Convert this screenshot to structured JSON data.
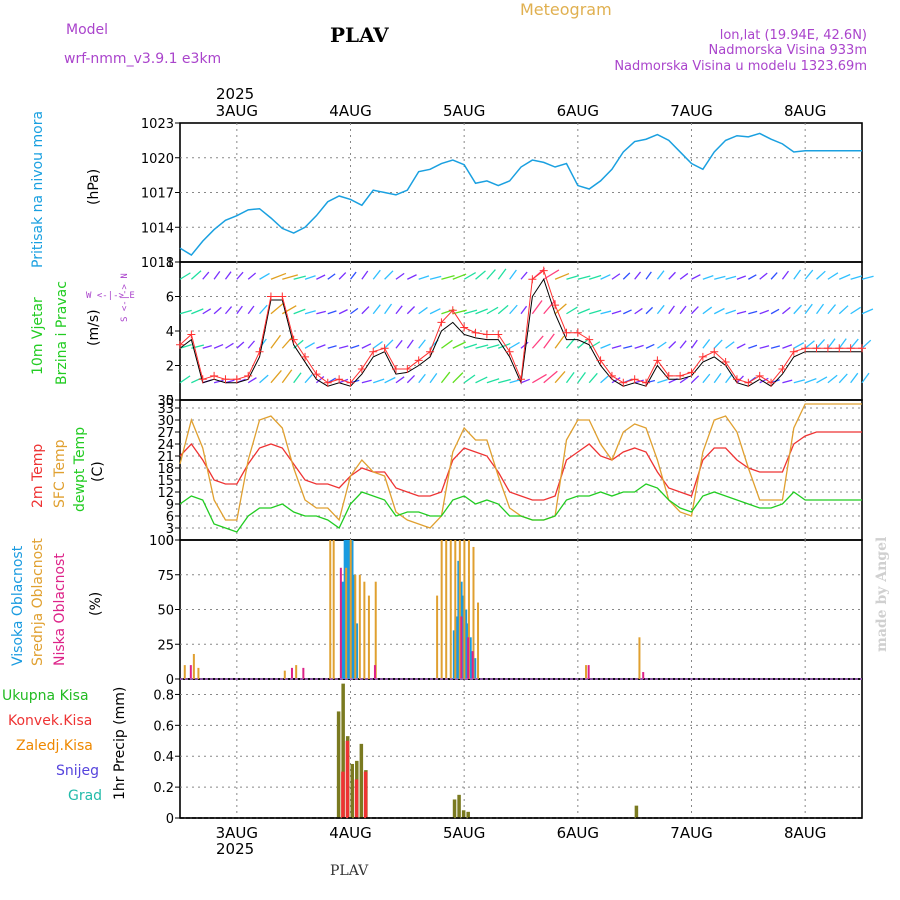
{
  "header": {
    "model_label": "Model",
    "model_name": "wrf-nmm_v3.9.1  e3km",
    "station": "PLAV",
    "title": "Meteogram",
    "lonlat": "lon,lat (19.94E, 42.6N)",
    "elevation": "Nadmorska Visina 933m",
    "model_elevation": "Nadmorska Visina u modelu 1323.69m",
    "footer_station": "PLAV",
    "watermark": "made by Angel"
  },
  "colors": {
    "pressure": "#1aa0e0",
    "wind_speed": "#000000",
    "wind_gust": "#ff3030",
    "temp2m": "#ee3333",
    "sfc_temp": "#e0a030",
    "dewpt": "#22cc22",
    "cloud_high": "#1a9be0",
    "cloud_mid": "#e0a030",
    "cloud_low": "#dd2288",
    "precip_total": "#22bb22",
    "precip_conv": "#ee3333",
    "precip_frz": "#ee8800",
    "precip_snow": "#5544dd",
    "precip_hail": "#22bbaa",
    "title": "#e0b050",
    "meta": "#aa44cc"
  },
  "time_axis": {
    "year": "2025",
    "days": [
      "3AUG",
      "4AUG",
      "5AUG",
      "6AUG",
      "7AUG",
      "8AUG"
    ],
    "start_day_offset": 0.5,
    "span_days": 6.0
  },
  "panels": {
    "pressure": {
      "ylabel_main": "Pritisak na nivou mora",
      "ylabel_unit": "(hPa)",
      "ticks": [
        "1011",
        "1014",
        "1017",
        "1020",
        "1023"
      ]
    },
    "wind": {
      "ylabel_line1": "10m Vjetar",
      "ylabel_line2": "Brzina i Pravac",
      "ylabel_unit": "(m/s)",
      "compass": "W <-|-> E",
      "compass_v": "S <-|-> N",
      "ticks": [
        "0",
        "2",
        "4",
        "6",
        "8"
      ]
    },
    "temp": {
      "ylabel_2m": "2m Temp",
      "ylabel_sfc": "SFC Temp",
      "ylabel_dew": "dewpt Temp",
      "ylabel_unit": "(C)",
      "ticks": [
        "0",
        "3",
        "6",
        "9",
        "12",
        "15",
        "18",
        "21",
        "24",
        "27",
        "30",
        "33",
        "35"
      ]
    },
    "cloud": {
      "ylabel_high": "Visoka Oblacnost",
      "ylabel_mid": "Srednja Oblacnost",
      "ylabel_low": "Niska Oblacnost",
      "ylabel_unit": "(%)",
      "ticks": [
        "0",
        "25",
        "50",
        "75",
        "100"
      ]
    },
    "precip": {
      "legend_total": "Ukupna Kisa",
      "legend_conv": "Konvek.Kisa",
      "legend_frz": "Zaledj.Kisa",
      "legend_snow": "Snijeg",
      "legend_hail": "Grad",
      "ylabel": "1hr Precip (mm)",
      "ticks": [
        "0",
        "0.2",
        "0.4",
        "0.6",
        "0.8"
      ]
    }
  },
  "chart_data": [
    {
      "type": "line",
      "title": "Pritisak na nivou mora",
      "ylabel": "(hPa)",
      "ylim": [
        1011,
        1023
      ],
      "x_days": [
        0.5,
        0.6,
        0.7,
        0.8,
        0.9,
        1.0,
        1.1,
        1.2,
        1.3,
        1.4,
        1.5,
        1.6,
        1.7,
        1.8,
        1.9,
        2.0,
        2.1,
        2.2,
        2.3,
        2.4,
        2.5,
        2.6,
        2.7,
        2.8,
        2.9,
        3.0,
        3.1,
        3.2,
        3.3,
        3.4,
        3.5,
        3.6,
        3.7,
        3.8,
        3.9,
        4.0,
        4.1,
        4.2,
        4.3,
        4.4,
        4.5,
        4.6,
        4.7,
        4.8,
        4.9,
        5.0,
        5.1,
        5.2,
        5.3,
        5.4,
        5.5,
        5.6,
        5.7,
        5.8,
        5.9,
        6.0,
        6.1,
        6.2,
        6.3,
        6.4,
        6.5
      ],
      "values": [
        1012.2,
        1011.6,
        1012.8,
        1013.8,
        1014.6,
        1015.0,
        1015.5,
        1015.6,
        1014.8,
        1013.9,
        1013.5,
        1014.0,
        1015.0,
        1016.2,
        1016.7,
        1016.4,
        1015.9,
        1017.2,
        1017.0,
        1016.8,
        1017.2,
        1018.8,
        1019.0,
        1019.5,
        1019.8,
        1019.4,
        1017.8,
        1018.0,
        1017.6,
        1018.0,
        1019.2,
        1019.8,
        1019.6,
        1019.2,
        1019.5,
        1017.6,
        1017.3,
        1018.0,
        1019.0,
        1020.5,
        1021.4,
        1021.6,
        1022.0,
        1021.5,
        1020.5,
        1019.5,
        1019.0,
        1020.5,
        1021.5,
        1021.9,
        1021.8,
        1022.1,
        1021.6,
        1021.2,
        1020.5,
        1020.6,
        1020.6,
        1020.6,
        1020.6,
        1020.6,
        1020.6
      ]
    },
    {
      "type": "line",
      "title": "10m Vjetar Brzina i Pravac",
      "ylabel": "(m/s)",
      "ylim": [
        0,
        8
      ],
      "x_days": [
        0.5,
        0.6,
        0.7,
        0.8,
        0.9,
        1.0,
        1.1,
        1.2,
        1.3,
        1.4,
        1.5,
        1.6,
        1.7,
        1.8,
        1.9,
        2.0,
        2.1,
        2.2,
        2.3,
        2.4,
        2.5,
        2.6,
        2.7,
        2.8,
        2.9,
        3.0,
        3.1,
        3.2,
        3.3,
        3.4,
        3.5,
        3.6,
        3.7,
        3.8,
        3.9,
        4.0,
        4.1,
        4.2,
        4.3,
        4.4,
        4.5,
        4.6,
        4.7,
        4.8,
        4.9,
        5.0,
        5.1,
        5.2,
        5.3,
        5.4,
        5.5,
        5.6,
        5.7,
        5.8,
        5.9,
        6.0,
        6.1,
        6.2,
        6.3,
        6.4,
        6.5
      ],
      "series": [
        {
          "name": "wind_speed",
          "values": [
            3.0,
            3.5,
            1.0,
            1.2,
            1.0,
            1.0,
            1.2,
            2.5,
            5.8,
            5.8,
            3.2,
            2.2,
            1.2,
            0.8,
            1.0,
            0.8,
            1.5,
            2.5,
            2.8,
            1.5,
            1.6,
            2.0,
            2.5,
            4.0,
            4.5,
            3.8,
            3.6,
            3.5,
            3.5,
            2.5,
            1.0,
            6.0,
            7.0,
            5.0,
            3.5,
            3.5,
            3.2,
            2.0,
            1.2,
            0.8,
            1.0,
            0.8,
            2.0,
            1.2,
            1.2,
            1.4,
            2.2,
            2.5,
            2.0,
            1.0,
            0.8,
            1.2,
            0.8,
            1.5,
            2.5,
            2.8,
            2.8,
            2.8,
            2.8,
            2.8,
            2.8
          ]
        },
        {
          "name": "wind_gust",
          "values": [
            3.2,
            3.8,
            1.2,
            1.4,
            1.2,
            1.2,
            1.4,
            2.8,
            6.0,
            6.0,
            3.5,
            2.5,
            1.5,
            1.0,
            1.2,
            1.0,
            1.8,
            2.8,
            3.0,
            1.8,
            1.8,
            2.3,
            2.8,
            4.5,
            5.2,
            4.2,
            3.9,
            3.8,
            3.8,
            2.8,
            1.2,
            7.0,
            7.5,
            5.5,
            3.9,
            3.9,
            3.5,
            2.3,
            1.4,
            1.0,
            1.2,
            1.0,
            2.3,
            1.4,
            1.4,
            1.6,
            2.5,
            2.8,
            2.2,
            1.2,
            1.0,
            1.4,
            1.0,
            1.8,
            2.8,
            3.0,
            3.0,
            3.0,
            3.0,
            3.0,
            3.0
          ]
        }
      ]
    },
    {
      "type": "line",
      "title": "Temperature",
      "ylabel": "(C)",
      "ylim": [
        0,
        35
      ],
      "x_days": [
        0.5,
        0.6,
        0.7,
        0.8,
        0.9,
        1.0,
        1.1,
        1.2,
        1.3,
        1.4,
        1.5,
        1.6,
        1.7,
        1.8,
        1.9,
        2.0,
        2.1,
        2.2,
        2.3,
        2.4,
        2.5,
        2.6,
        2.7,
        2.8,
        2.9,
        3.0,
        3.1,
        3.2,
        3.3,
        3.4,
        3.5,
        3.6,
        3.7,
        3.8,
        3.9,
        4.0,
        4.1,
        4.2,
        4.3,
        4.4,
        4.5,
        4.6,
        4.7,
        4.8,
        4.9,
        5.0,
        5.1,
        5.2,
        5.3,
        5.4,
        5.5,
        5.6,
        5.7,
        5.8,
        5.9,
        6.0,
        6.1,
        6.2,
        6.3,
        6.4,
        6.5
      ],
      "series": [
        {
          "name": "2m Temp",
          "values": [
            21,
            24,
            20,
            15,
            14,
            14,
            19,
            23,
            24,
            23,
            19,
            15,
            14,
            14,
            13,
            16,
            18,
            17,
            17,
            13,
            12,
            11,
            11,
            12,
            20,
            23,
            22,
            21,
            17,
            12,
            11,
            10,
            10,
            11,
            20,
            22,
            24,
            21,
            20,
            22,
            23,
            22,
            17,
            13,
            12,
            11,
            20,
            23,
            23,
            20,
            18,
            17,
            17,
            17,
            24,
            26,
            27,
            27,
            27,
            27,
            27
          ]
        },
        {
          "name": "SFC Temp",
          "values": [
            19,
            30,
            23,
            10,
            5,
            5,
            20,
            30,
            31,
            28,
            18,
            10,
            8,
            8,
            5,
            16,
            20,
            17,
            16,
            7,
            5,
            4,
            3,
            6,
            22,
            28,
            25,
            25,
            16,
            8,
            6,
            5,
            5,
            6,
            25,
            30,
            30,
            24,
            20,
            27,
            29,
            28,
            20,
            10,
            7,
            6,
            22,
            30,
            31,
            27,
            18,
            10,
            10,
            10,
            28,
            34,
            34,
            34,
            34,
            34,
            34
          ]
        },
        {
          "name": "dewpt Temp",
          "values": [
            9,
            11,
            10,
            4,
            3,
            2,
            6,
            8,
            8,
            9,
            7,
            6,
            6,
            5,
            3,
            9,
            12,
            11,
            10,
            6,
            7,
            7,
            6,
            6,
            10,
            11,
            9,
            10,
            9,
            6,
            6,
            5,
            5,
            6,
            10,
            11,
            11,
            12,
            11,
            12,
            12,
            14,
            13,
            10,
            8,
            7,
            11,
            12,
            11,
            10,
            9,
            8,
            8,
            9,
            12,
            10,
            10,
            10,
            10,
            10,
            10
          ]
        }
      ]
    },
    {
      "type": "bar",
      "title": "Oblacnost",
      "ylabel": "(%)",
      "ylim": [
        0,
        100
      ],
      "series": [
        {
          "name": "Visoka Oblacnost",
          "x_days": [
            1.92,
            1.94,
            1.96,
            1.98,
            2.0,
            2.02,
            2.04,
            2.9,
            2.92,
            2.94,
            2.96,
            2.98,
            3.0,
            3.02,
            3.04,
            3.06,
            3.08
          ],
          "values": [
            70,
            100,
            100,
            100,
            100,
            75,
            40,
            35,
            45,
            85,
            70,
            60,
            50,
            40,
            30,
            20,
            15
          ]
        },
        {
          "name": "Srednja Oblacnost",
          "x_days": [
            0.52,
            0.6,
            0.64,
            1.4,
            1.5,
            1.8,
            1.83,
            1.94,
            1.98,
            2.02,
            2.06,
            2.1,
            2.14,
            2.2,
            2.74,
            2.78,
            2.82,
            2.86,
            2.9,
            2.94,
            2.98,
            3.02,
            3.06,
            3.1,
            4.05,
            4.52
          ],
          "values": [
            10,
            18,
            8,
            6,
            10,
            100,
            100,
            80,
            100,
            75,
            75,
            70,
            60,
            70,
            60,
            100,
            100,
            100,
            100,
            100,
            100,
            100,
            95,
            55,
            10,
            30
          ]
        },
        {
          "name": "Niska Oblacnost",
          "x_days": [
            0.56,
            1.45,
            1.55,
            1.88,
            2.18,
            2.94,
            3.0,
            3.04,
            4.06,
            4.54
          ],
          "values": [
            10,
            8,
            8,
            80,
            10,
            45,
            30,
            20,
            10,
            5
          ]
        }
      ]
    },
    {
      "type": "bar",
      "title": "1hr Precip",
      "ylabel": "(mm)",
      "ylim": [
        0,
        0.9
      ],
      "series": [
        {
          "name": "Ukupna Kisa",
          "x_days": [
            1.88,
            1.92,
            1.96,
            2.0,
            2.04,
            2.08,
            2.12,
            2.9,
            2.94,
            2.98,
            3.02,
            4.5
          ],
          "values": [
            0.69,
            0.87,
            0.53,
            0.35,
            0.37,
            0.48,
            0.31,
            0.12,
            0.15,
            0.05,
            0.04,
            0.08
          ]
        },
        {
          "name": "Konvek.Kisa",
          "x_days": [
            1.9,
            1.94,
            2.02,
            2.1
          ],
          "values": [
            0.3,
            0.5,
            0.25,
            0.3
          ]
        }
      ]
    }
  ]
}
